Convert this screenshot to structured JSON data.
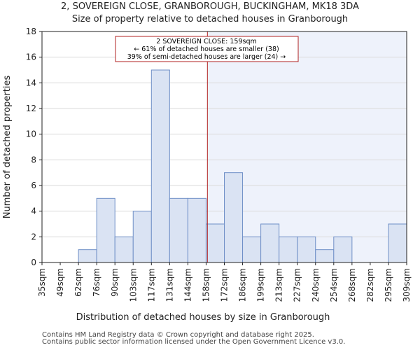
{
  "chart_data": {
    "type": "bar",
    "title": "2, SOVEREIGN CLOSE, GRANBOROUGH, BUCKINGHAM, MK18 3DA",
    "subtitle": "Size of property relative to detached houses in Granborough",
    "xlabel": "Distribution of detached houses by size in Granborough",
    "ylabel": "Number of detached properties",
    "bin_edges": [
      "35sqm",
      "49sqm",
      "62sqm",
      "76sqm",
      "90sqm",
      "103sqm",
      "117sqm",
      "131sqm",
      "144sqm",
      "158sqm",
      "172sqm",
      "186sqm",
      "199sqm",
      "213sqm",
      "227sqm",
      "240sqm",
      "254sqm",
      "268sqm",
      "282sqm",
      "295sqm",
      "309sqm"
    ],
    "values": [
      0,
      0,
      1,
      5,
      2,
      4,
      15,
      5,
      5,
      3,
      7,
      2,
      3,
      2,
      2,
      1,
      2,
      0,
      0,
      3
    ],
    "ylim": [
      0,
      18
    ],
    "yticks": [
      0,
      2,
      4,
      6,
      8,
      10,
      12,
      14,
      16,
      18
    ],
    "grid": true,
    "marker_value": 159,
    "annotation": {
      "line1": "2 SOVEREIGN CLOSE: 159sqm",
      "line2": "← 61% of detached houses are smaller (38)",
      "line3": "39% of semi-detached houses are larger (24) →"
    },
    "colors": {
      "bar_fill": "#dae3f3",
      "bar_stroke": "#6f8fc7",
      "marker": "#b22222",
      "highlight": "#eef2fb",
      "grid": "#d9d9d9"
    }
  },
  "footer": {
    "line1": "Contains HM Land Registry data © Crown copyright and database right 2025.",
    "line2": "Contains public sector information licensed under the Open Government Licence v3.0."
  }
}
